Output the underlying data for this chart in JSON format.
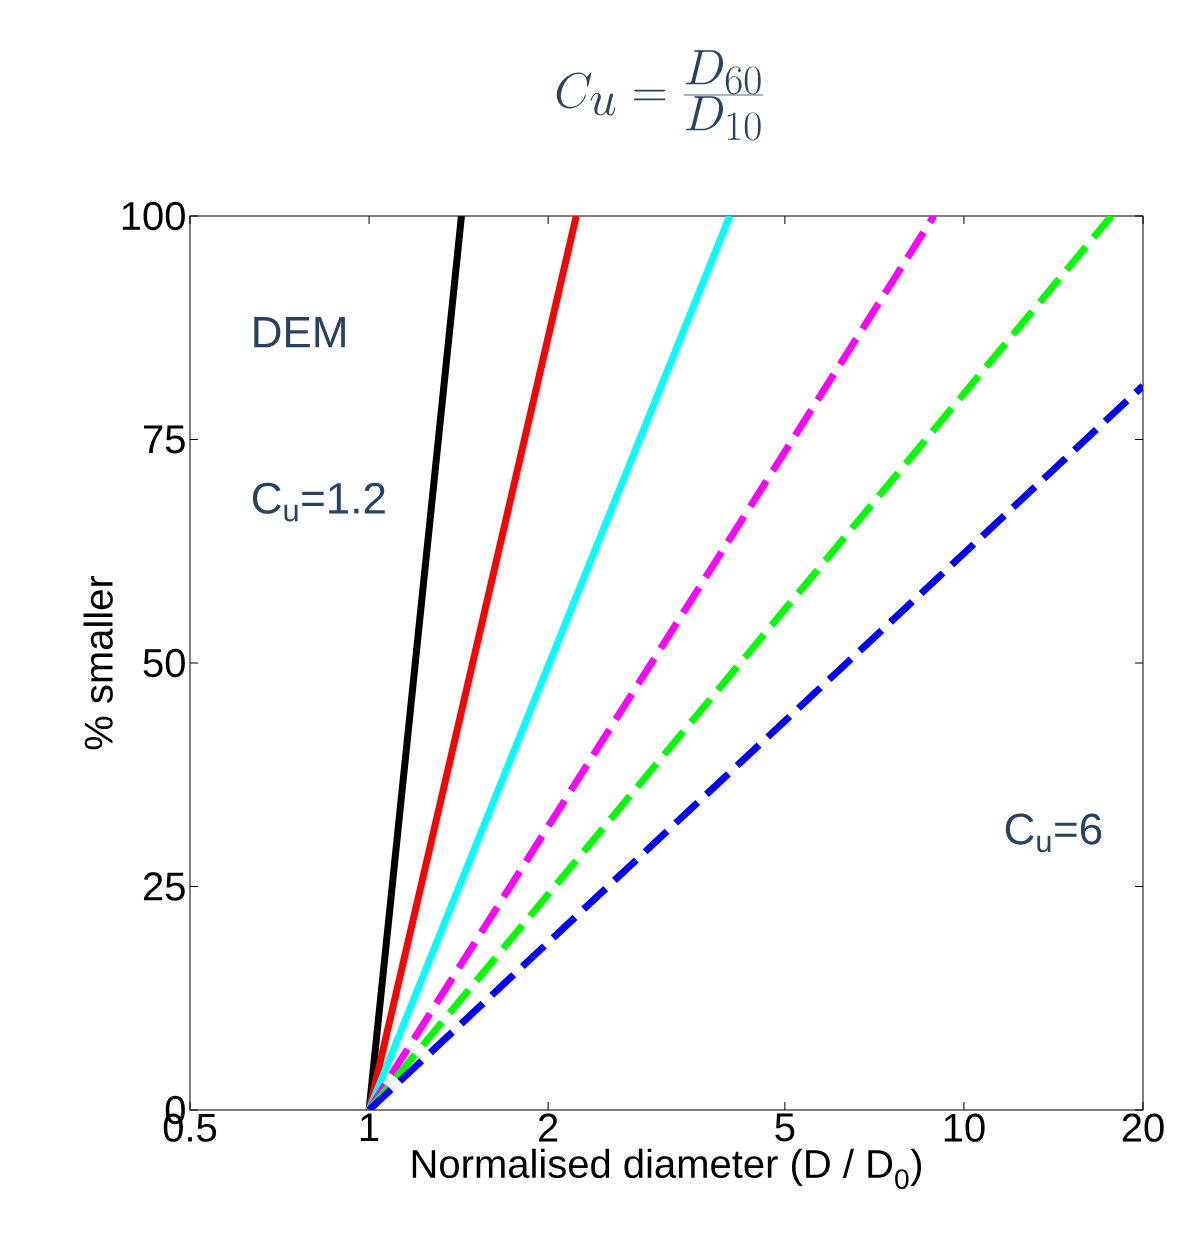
{
  "chart_data": {
    "type": "line",
    "title": "C_u=\\frac{D_{60}}{D_{10}}",
    "xlabel": "Normalised diameter (D / D$_{0}$)",
    "ylabel": "% smaller",
    "annotations": [
      "DEM",
      "C$_{u}$=1.2",
      "C$_{u}$=6"
    ],
    "log": "x",
    "grid": false,
    "marker": "none",
    "xlim": [
      0.5,
      20
    ],
    "ylim": [
      0,
      100
    ],
    "xticks": [
      0.5,
      1,
      2,
      5,
      10,
      20
    ],
    "yticks": [
      0,
      25,
      50,
      75,
      100
    ],
    "series": [
      {
        "color": "#000000",
        "line_style": "solid",
        "x": [
          1,
          1.43
        ],
        "values": [
          0,
          100
        ]
      },
      {
        "color": "#ff0000",
        "line_style": "solid",
        "x": [
          1,
          2.23
        ],
        "values": [
          0,
          100
        ]
      },
      {
        "color": "#00ffff",
        "line_style": "solid",
        "x": [
          1,
          4.04
        ],
        "values": [
          0,
          100
        ]
      },
      {
        "color": "#ff00ff",
        "line_style": "dashed",
        "x": [
          1,
          8.9
        ],
        "values": [
          0,
          100
        ]
      },
      {
        "color": "#00ff00",
        "line_style": "dashed",
        "x": [
          1,
          17.7
        ],
        "values": [
          0,
          100
        ]
      },
      {
        "color": "#0000ff",
        "line_style": "dashed",
        "x": [
          1,
          20
        ],
        "values": [
          0,
          81
        ]
      }
    ]
  }
}
